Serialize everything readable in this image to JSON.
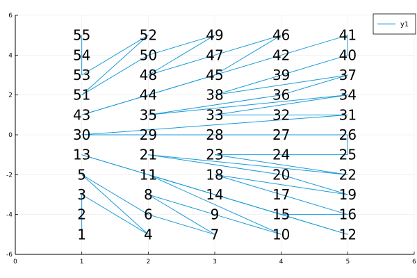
{
  "chart_data": {
    "type": "line",
    "title": "",
    "xlabel": "",
    "ylabel": "",
    "xlim": [
      0,
      6
    ],
    "ylim": [
      -6,
      6
    ],
    "xticks": [
      0,
      1,
      2,
      3,
      4,
      5,
      6
    ],
    "yticks": [
      -6,
      -4,
      -2,
      0,
      2,
      4,
      6
    ],
    "grid": true,
    "legend_position": "top-right",
    "series_color": "#1a9bd7",
    "series": [
      {
        "name": "y1",
        "points": [
          {
            "id": "1",
            "x": 1,
            "y": -5
          },
          {
            "id": "2",
            "x": 1,
            "y": -4
          },
          {
            "id": "3",
            "x": 1,
            "y": -3
          },
          {
            "id": "4",
            "x": 2,
            "y": -5
          },
          {
            "id": "5",
            "x": 1,
            "y": -2
          },
          {
            "id": "6",
            "x": 2,
            "y": -4
          },
          {
            "id": "7",
            "x": 3,
            "y": -5
          },
          {
            "id": "8",
            "x": 2,
            "y": -3
          },
          {
            "id": "9",
            "x": 3,
            "y": -4
          },
          {
            "id": "10",
            "x": 4,
            "y": -5
          },
          {
            "id": "11",
            "x": 2,
            "y": -2
          },
          {
            "id": "12",
            "x": 5,
            "y": -5
          },
          {
            "id": "13",
            "x": 1,
            "y": -1
          },
          {
            "id": "14",
            "x": 3,
            "y": -3
          },
          {
            "id": "15",
            "x": 4,
            "y": -4
          },
          {
            "id": "16",
            "x": 5,
            "y": -4
          },
          {
            "id": "17",
            "x": 4,
            "y": -3
          },
          {
            "id": "18",
            "x": 3,
            "y": -2
          },
          {
            "id": "19",
            "x": 5,
            "y": -3
          },
          {
            "id": "20",
            "x": 4,
            "y": -2
          },
          {
            "id": "21",
            "x": 2,
            "y": -1
          },
          {
            "id": "22",
            "x": 5,
            "y": -2
          },
          {
            "id": "23",
            "x": 3,
            "y": -1
          },
          {
            "id": "24",
            "x": 4,
            "y": -1
          },
          {
            "id": "25",
            "x": 5,
            "y": -1
          },
          {
            "id": "26",
            "x": 5,
            "y": 0
          },
          {
            "id": "27",
            "x": 4,
            "y": 0
          },
          {
            "id": "28",
            "x": 3,
            "y": 0
          },
          {
            "id": "29",
            "x": 2,
            "y": 0
          },
          {
            "id": "30",
            "x": 1,
            "y": 0
          },
          {
            "id": "31",
            "x": 5,
            "y": 1
          },
          {
            "id": "32",
            "x": 4,
            "y": 1
          },
          {
            "id": "33",
            "x": 3,
            "y": 1
          },
          {
            "id": "34",
            "x": 5,
            "y": 2
          },
          {
            "id": "35",
            "x": 2,
            "y": 1
          },
          {
            "id": "36",
            "x": 4,
            "y": 2
          },
          {
            "id": "37",
            "x": 5,
            "y": 3
          },
          {
            "id": "38",
            "x": 3,
            "y": 2
          },
          {
            "id": "39",
            "x": 4,
            "y": 3
          },
          {
            "id": "40",
            "x": 5,
            "y": 4
          },
          {
            "id": "41",
            "x": 5,
            "y": 5
          },
          {
            "id": "42",
            "x": 4,
            "y": 4
          },
          {
            "id": "43",
            "x": 1,
            "y": 1
          },
          {
            "id": "44",
            "x": 2,
            "y": 2
          },
          {
            "id": "45",
            "x": 3,
            "y": 3
          },
          {
            "id": "46",
            "x": 4,
            "y": 5
          },
          {
            "id": "47",
            "x": 3,
            "y": 4
          },
          {
            "id": "48",
            "x": 2,
            "y": 3
          },
          {
            "id": "49",
            "x": 3,
            "y": 5
          },
          {
            "id": "50",
            "x": 2,
            "y": 4
          },
          {
            "id": "51",
            "x": 1,
            "y": 2
          },
          {
            "id": "52",
            "x": 2,
            "y": 5
          },
          {
            "id": "53",
            "x": 1,
            "y": 3
          },
          {
            "id": "54",
            "x": 1,
            "y": 4
          },
          {
            "id": "55",
            "x": 1,
            "y": 5
          }
        ]
      }
    ]
  }
}
